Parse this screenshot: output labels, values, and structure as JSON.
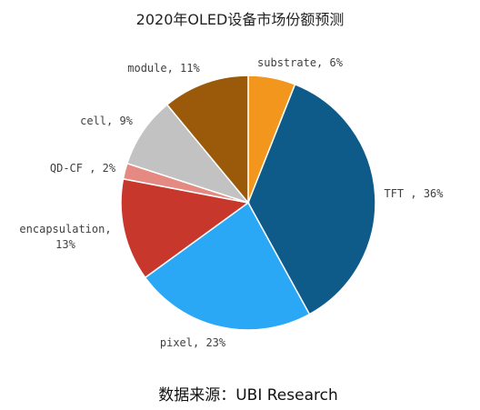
{
  "chart_data": {
    "type": "pie",
    "title": "2020年OLED设备市场份额预测",
    "start_angle_deg": 0,
    "direction": "clockwise",
    "slices": [
      {
        "name": "substrate",
        "value": 6,
        "label": "substrate, 6%",
        "color": "#F2961E"
      },
      {
        "name": "TFT",
        "value": 36,
        "label": "TFT , 36%",
        "color": "#0E5A89"
      },
      {
        "name": "pixel",
        "value": 23,
        "label": "pixel, 23%",
        "color": "#2AA7F5"
      },
      {
        "name": "encapsulation",
        "value": 13,
        "label": "encapsulation,\n13%",
        "color": "#C8372C"
      },
      {
        "name": "QD-CF",
        "value": 2,
        "label": "QD-CF , 2%",
        "color": "#E58A82"
      },
      {
        "name": "cell",
        "value": 9,
        "label": "cell, 9%",
        "color": "#C2C2C2"
      },
      {
        "name": "module",
        "value": 11,
        "label": "module, 11%",
        "color": "#9B5A0A"
      }
    ],
    "source": "数据来源：UBI Research"
  }
}
